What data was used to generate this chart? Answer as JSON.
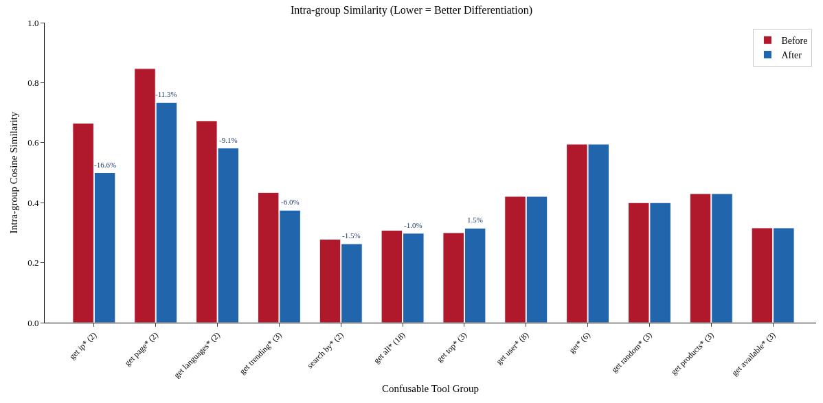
{
  "chart_data": {
    "type": "bar",
    "title": "Intra-group Similarity (Lower = Better Differentiation)",
    "xlabel": "Confusable Tool Group",
    "ylabel": "Intra-group Cosine Similarity",
    "categories": [
      "get ip* (2)",
      "get page* (2)",
      "get languages* (2)",
      "get trending* (3)",
      "search by* (2)",
      "get all* (18)",
      "get top* (3)",
      "get user* (8)",
      "get* (6)",
      "get random* (3)",
      "get products* (3)",
      "get available* (3)"
    ],
    "series": [
      {
        "name": "Before",
        "color": "#b0182c",
        "values": [
          0.665,
          0.847,
          0.673,
          0.434,
          0.278,
          0.308,
          0.3,
          0.421,
          0.595,
          0.4,
          0.43,
          0.316
        ]
      },
      {
        "name": "After",
        "color": "#2166ac",
        "values": [
          0.5,
          0.734,
          0.582,
          0.375,
          0.263,
          0.298,
          0.315,
          0.421,
          0.595,
          0.4,
          0.43,
          0.316
        ]
      }
    ],
    "annotations": [
      {
        "text": "-16.6%",
        "x": "get ip* (2)",
        "y": 0.5
      },
      {
        "text": "-11.3%",
        "x": "get page* (2)",
        "y": 0.734
      },
      {
        "text": "-9.1%",
        "x": "get languages* (2)",
        "y": 0.582
      },
      {
        "text": "-6.0%",
        "x": "get trending* (3)",
        "y": 0.375
      },
      {
        "text": "-1.5%",
        "x": "search by* (2)",
        "y": 0.263
      },
      {
        "text": "-1.0%",
        "x": "get all* (18)",
        "y": 0.298
      },
      {
        "text": "1.5%",
        "x": "get top* (3)",
        "y": 0.315
      }
    ],
    "ylim": [
      0,
      1
    ],
    "yticks": [
      {
        "value": 0,
        "label": "0.0"
      },
      0.2,
      0.4,
      0.6,
      0.8,
      {
        "value": 1,
        "label": "1.0"
      }
    ],
    "grid": false,
    "legend": "top right"
  }
}
